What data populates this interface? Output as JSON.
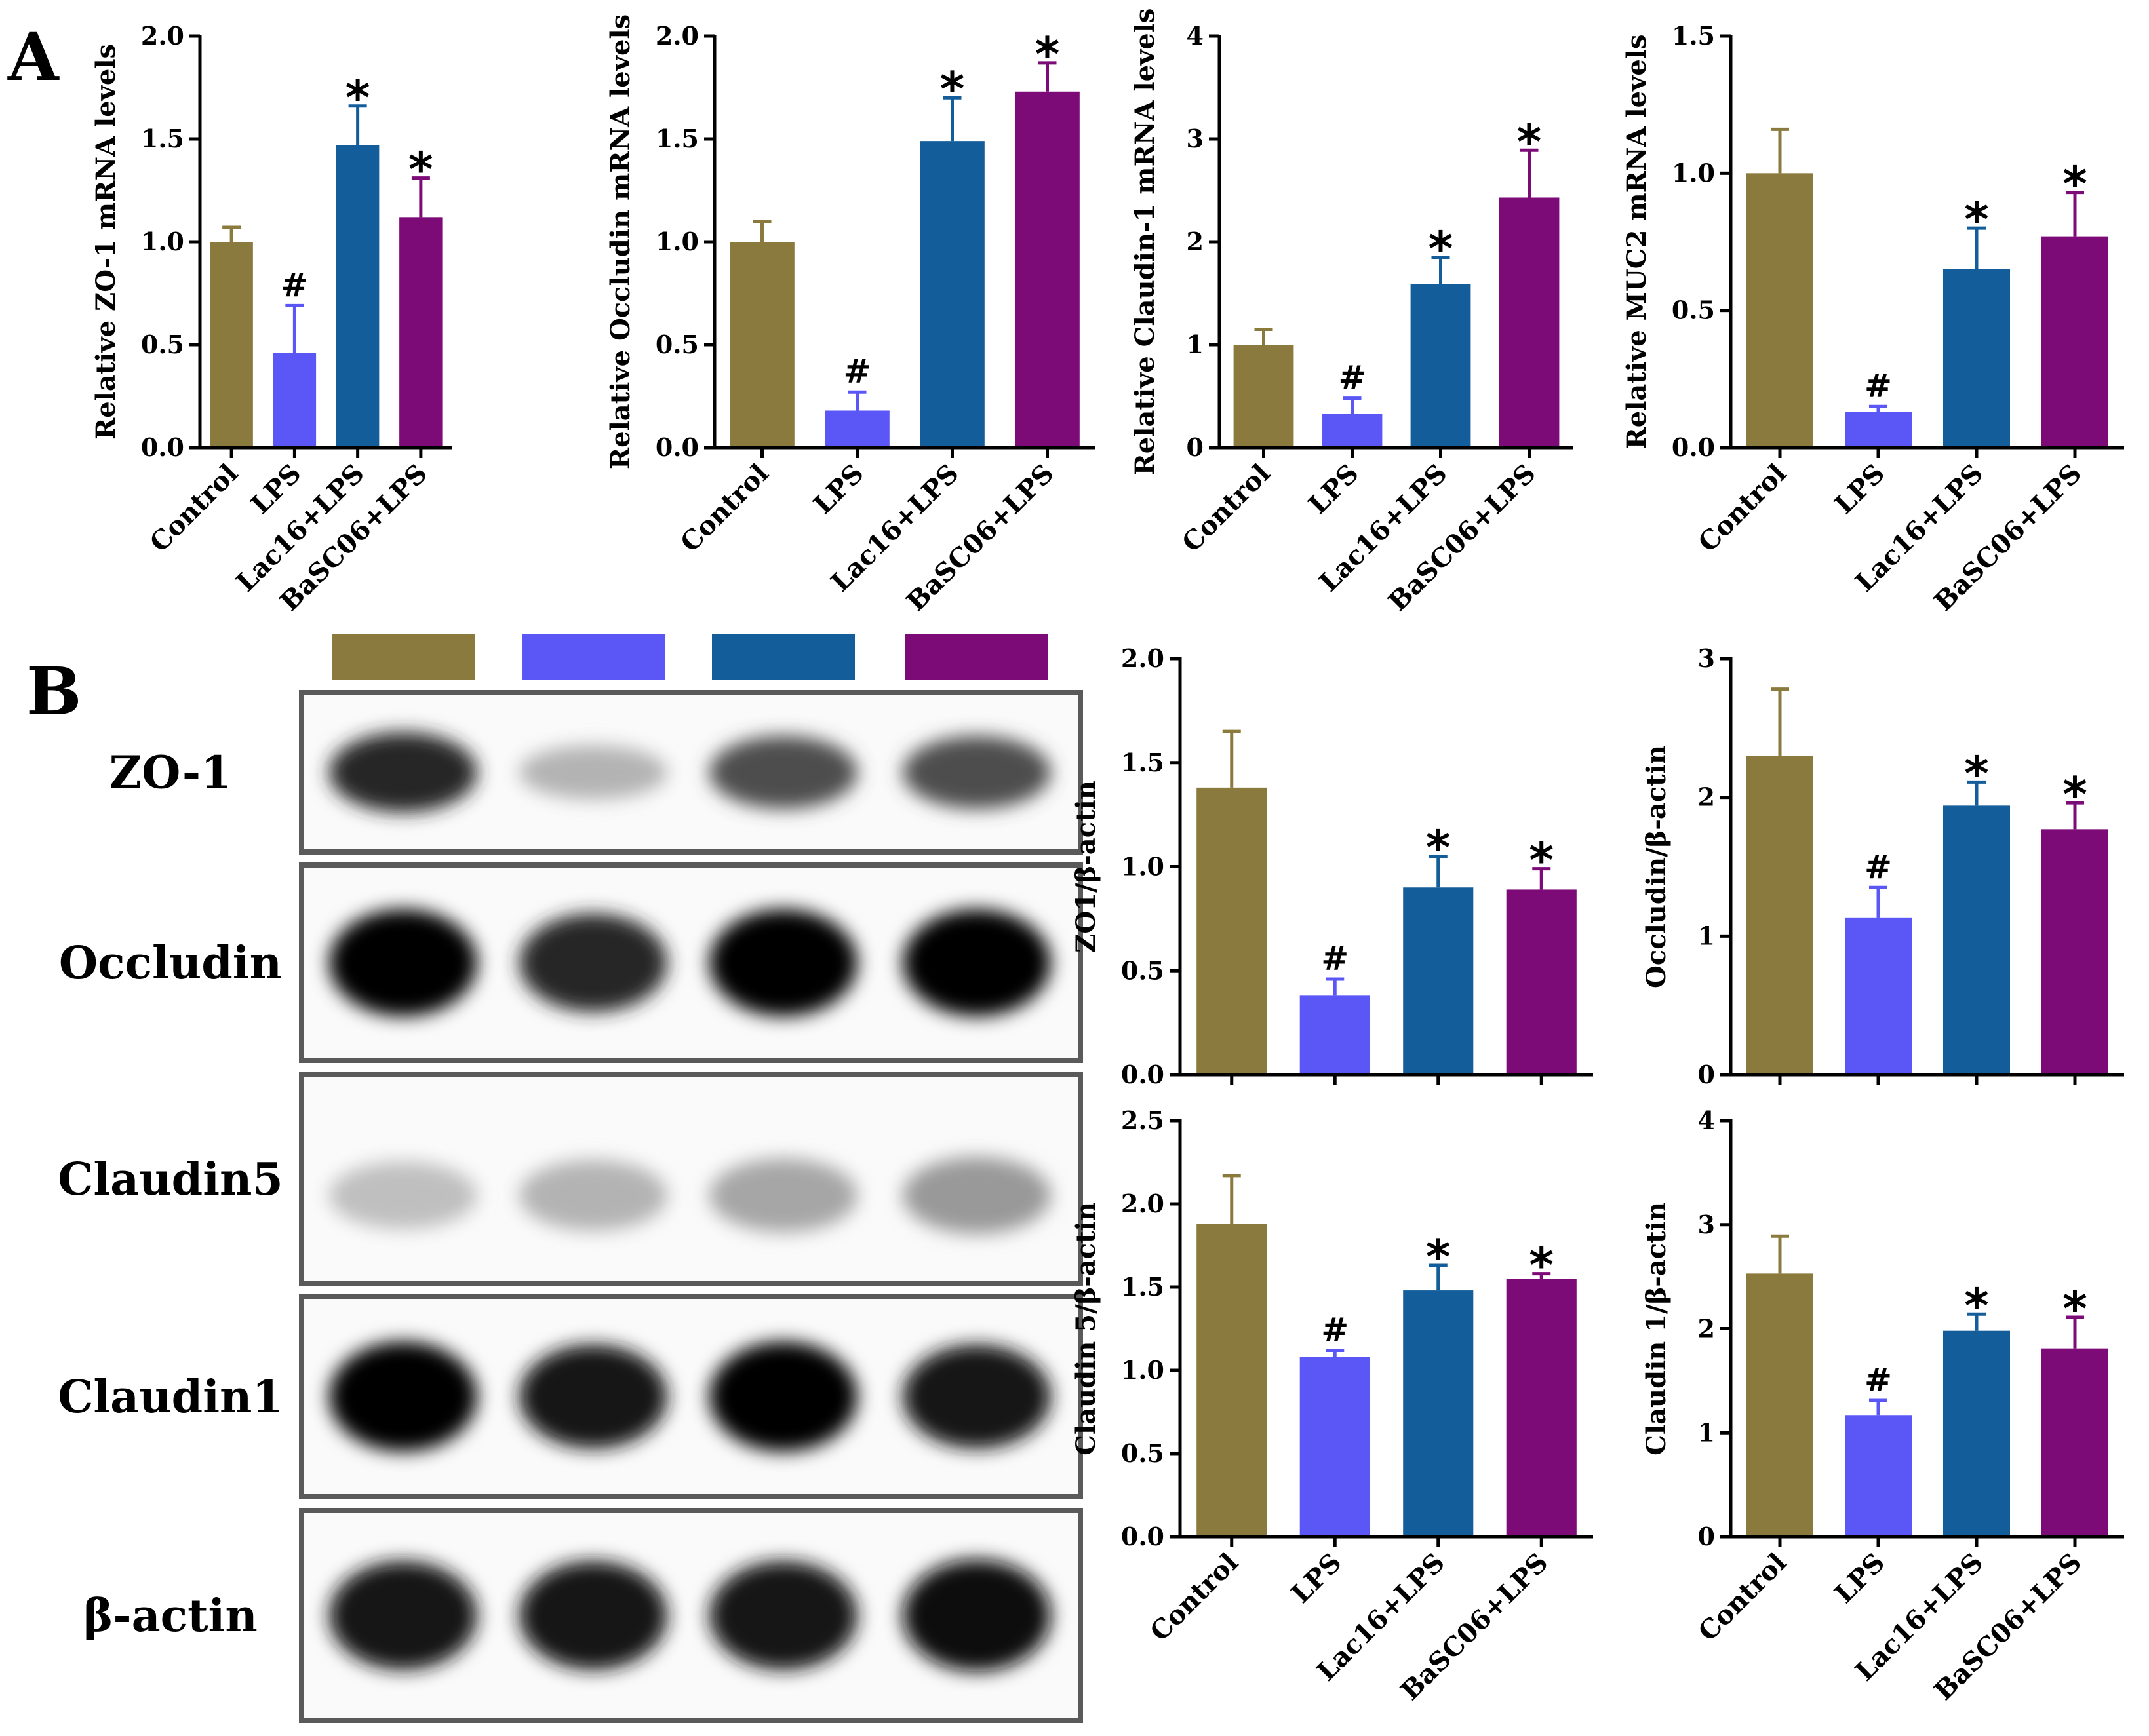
{
  "panels": {
    "a_letter": "A",
    "b_letter": "B"
  },
  "categories": [
    "Control",
    "LPS",
    "Lac16+LPS",
    "BaSC06+LPS"
  ],
  "colors": {
    "Control": "#8b7a3e",
    "LPS": "#5b57f7",
    "Lac16+LPS": "#135d9a",
    "BaSC06+LPS": "#7c0a77"
  },
  "blot": {
    "labels": [
      "ZO-1",
      "Occludin",
      "Claudin5",
      "Claudin1",
      "β-actin"
    ],
    "rows": [
      {
        "name": "ZO-1",
        "intensity": [
          0.85,
          0.3,
          0.7,
          0.7
        ]
      },
      {
        "name": "Occludin",
        "intensity": [
          1.0,
          0.85,
          1.0,
          1.0
        ]
      },
      {
        "name": "Claudin5",
        "intensity": [
          0.25,
          0.3,
          0.35,
          0.4
        ]
      },
      {
        "name": "Claudin1",
        "intensity": [
          1.0,
          0.9,
          1.0,
          0.9
        ]
      },
      {
        "name": "β-actin",
        "intensity": [
          0.9,
          0.9,
          0.9,
          0.95
        ]
      }
    ]
  },
  "chart_data": [
    {
      "id": "A1",
      "type": "bar",
      "ylabel": "Relative ZO-1 mRNA levels",
      "categories": [
        "Control",
        "LPS",
        "Lac16+LPS",
        "BaSC06+LPS"
      ],
      "values": [
        1.0,
        0.46,
        1.47,
        1.12
      ],
      "errors": [
        0.07,
        0.23,
        0.19,
        0.19
      ],
      "marks": [
        "",
        "#",
        "*",
        "*"
      ],
      "ylim": [
        0,
        2.0
      ],
      "yticks": [
        "0.0",
        "0.5",
        "1.0",
        "1.5",
        "2.0"
      ],
      "show_xlabels": true
    },
    {
      "id": "A2",
      "type": "bar",
      "ylabel": "Relative Occludin mRNA levels",
      "categories": [
        "Control",
        "LPS",
        "Lac16+LPS",
        "BaSC06+LPS"
      ],
      "values": [
        1.0,
        0.18,
        1.49,
        1.73
      ],
      "errors": [
        0.1,
        0.09,
        0.21,
        0.14
      ],
      "marks": [
        "",
        "#",
        "*",
        "*"
      ],
      "ylim": [
        0,
        2.0
      ],
      "yticks": [
        "0.0",
        "0.5",
        "1.0",
        "1.5",
        "2.0"
      ],
      "show_xlabels": true
    },
    {
      "id": "A3",
      "type": "bar",
      "ylabel": "Relative Claudin-1 mRNA levels",
      "categories": [
        "Control",
        "LPS",
        "Lac16+LPS",
        "BaSC06+LPS"
      ],
      "values": [
        1.0,
        0.33,
        1.59,
        2.43
      ],
      "errors": [
        0.15,
        0.15,
        0.26,
        0.46
      ],
      "marks": [
        "",
        "#",
        "*",
        "*"
      ],
      "ylim": [
        0,
        4
      ],
      "yticks": [
        "0",
        "1",
        "2",
        "3",
        "4"
      ],
      "show_xlabels": true
    },
    {
      "id": "A4",
      "type": "bar",
      "ylabel": "Relative MUC2 mRNA levels",
      "categories": [
        "Control",
        "LPS",
        "Lac16+LPS",
        "BaSC06+LPS"
      ],
      "values": [
        1.0,
        0.13,
        0.65,
        0.77
      ],
      "errors": [
        0.16,
        0.02,
        0.15,
        0.16
      ],
      "marks": [
        "",
        "#",
        "*",
        "*"
      ],
      "ylim": [
        0,
        1.5
      ],
      "yticks": [
        "0.0",
        "0.5",
        "1.0",
        "1.5"
      ],
      "show_xlabels": true
    },
    {
      "id": "B1",
      "type": "bar",
      "ylabel": "ZO1/β-actin",
      "categories": [
        "Control",
        "LPS",
        "Lac16+LPS",
        "BaSC06+LPS"
      ],
      "values": [
        1.38,
        0.38,
        0.9,
        0.89
      ],
      "errors": [
        0.27,
        0.08,
        0.15,
        0.1
      ],
      "marks": [
        "",
        "#",
        "*",
        "*"
      ],
      "ylim": [
        0,
        2.0
      ],
      "yticks": [
        "0.0",
        "0.5",
        "1.0",
        "1.5",
        "2.0"
      ],
      "show_xlabels": false
    },
    {
      "id": "B2",
      "type": "bar",
      "ylabel": "Occludin/β-actin",
      "categories": [
        "Control",
        "LPS",
        "Lac16+LPS",
        "BaSC06+LPS"
      ],
      "values": [
        2.3,
        1.13,
        1.94,
        1.77
      ],
      "errors": [
        0.48,
        0.22,
        0.17,
        0.19
      ],
      "marks": [
        "",
        "#",
        "*",
        "*"
      ],
      "ylim": [
        0,
        3
      ],
      "yticks": [
        "0",
        "1",
        "2",
        "3"
      ],
      "show_xlabels": false
    },
    {
      "id": "B3",
      "type": "bar",
      "ylabel": "Claudin 5/β-actin",
      "categories": [
        "Control",
        "LPS",
        "Lac16+LPS",
        "BaSC06+LPS"
      ],
      "values": [
        1.88,
        1.08,
        1.48,
        1.55
      ],
      "errors": [
        0.29,
        0.04,
        0.15,
        0.03
      ],
      "marks": [
        "",
        "#",
        "*",
        "*"
      ],
      "ylim": [
        0,
        2.5
      ],
      "yticks": [
        "0.0",
        "0.5",
        "1.0",
        "1.5",
        "2.0",
        "2.5"
      ],
      "show_xlabels": true
    },
    {
      "id": "B4",
      "type": "bar",
      "ylabel": "Claudin 1/β-actin",
      "categories": [
        "Control",
        "LPS",
        "Lac16+LPS",
        "BaSC06+LPS"
      ],
      "values": [
        2.53,
        1.17,
        1.98,
        1.81
      ],
      "errors": [
        0.36,
        0.14,
        0.16,
        0.3
      ],
      "marks": [
        "",
        "#",
        "*",
        "*"
      ],
      "ylim": [
        0,
        4
      ],
      "yticks": [
        "0",
        "1",
        "2",
        "3",
        "4"
      ],
      "show_xlabels": true
    }
  ]
}
